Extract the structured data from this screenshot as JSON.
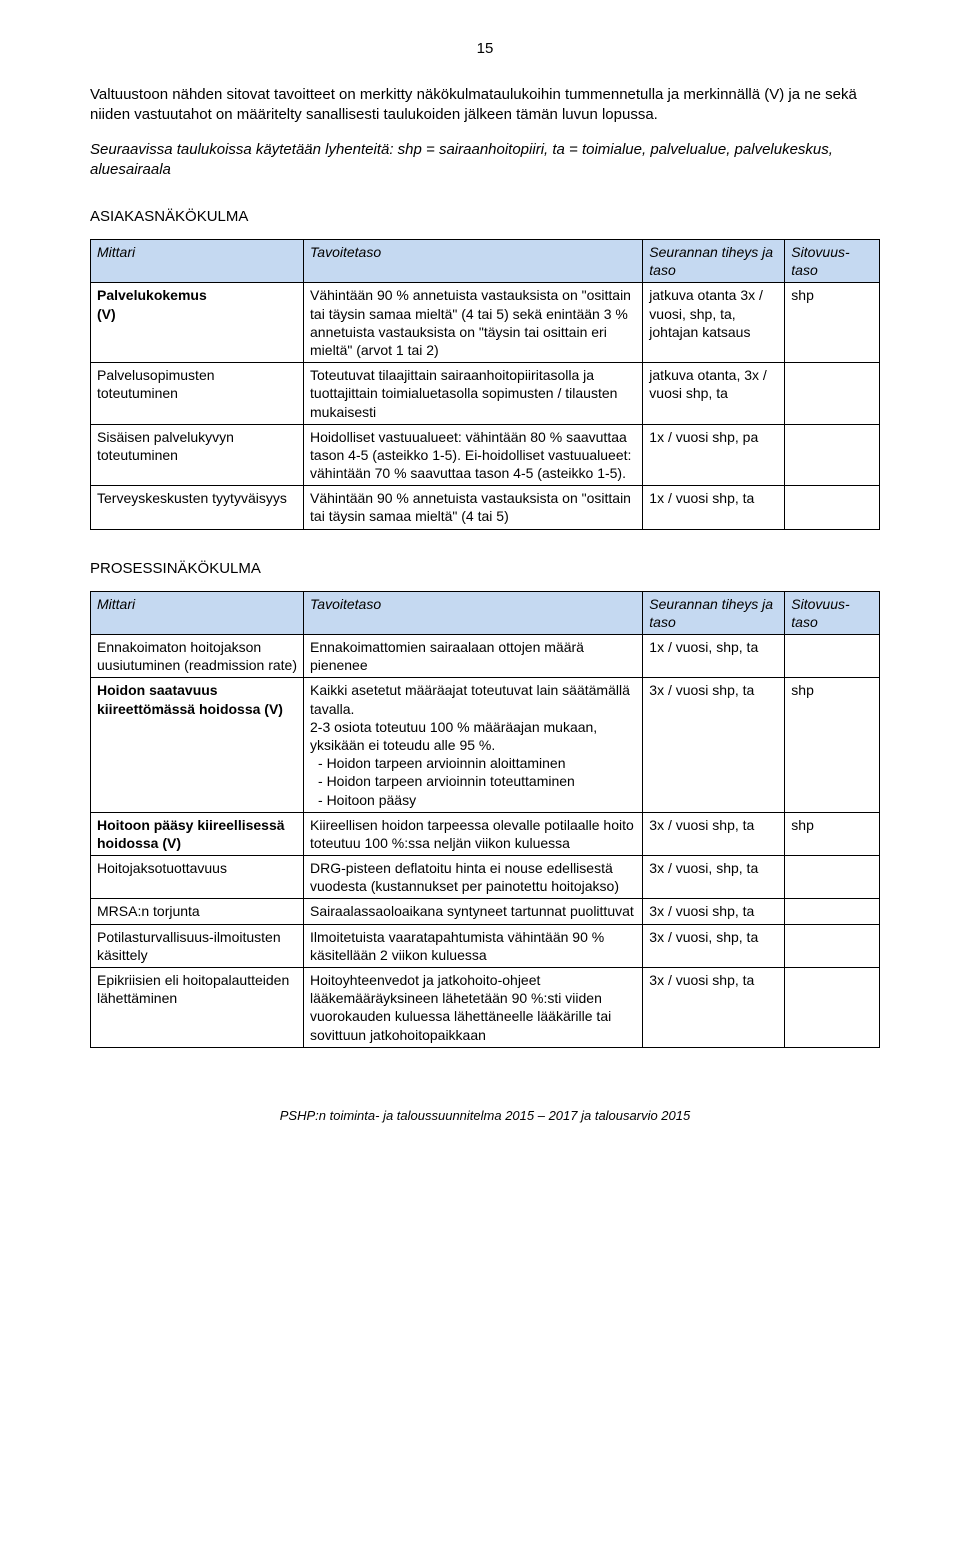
{
  "page_number": "15",
  "intro_paragraph": "Valtuustoon nähden sitovat tavoitteet on merkitty näkökulmataulukoihin tummennetulla ja merkinnällä (V) ja ne sekä niiden vastuutahot on määritelty sanallisesti taulukoiden jälkeen tämän luvun lopussa.",
  "intro_italic": "Seuraavissa taulukoissa käytetään lyhenteitä: shp = sairaanhoitopiiri, ta = toimialue, palvelualue, palvelukeskus, aluesairaala",
  "section1": {
    "heading": "ASIAKASNÄKÖKULMA",
    "headers": {
      "c1": "Mittari",
      "c2": "Tavoitetaso",
      "c3": "Seurannan tiheys ja taso",
      "c4": "Sitovuus-taso"
    },
    "rows": [
      {
        "mittari_html": "<span class=\"bold\">Palvelukokemus<br>(V)</span>",
        "tavoite": "Vähintään 90 % annetuista vastauksista on \"osittain tai täysin samaa mieltä\" (4 tai 5) sekä enintään 3 % annetuista vastauksista on \"täysin tai osittain eri mieltä\" (arvot 1 tai 2)",
        "seur": "jatkuva otanta 3x / vuosi, shp, ta, johtajan katsaus",
        "sito": "shp"
      },
      {
        "mittari_html": "Palvelusopimusten toteutuminen",
        "tavoite": "Toteutuvat tilaajittain sairaanhoitopiiritasolla ja tuottajittain toimialuetasolla sopimusten / tilausten mukaisesti",
        "seur": "jatkuva otanta, 3x / vuosi shp, ta",
        "sito": ""
      },
      {
        "mittari_html": "Sisäisen palvelukyvyn toteutuminen",
        "tavoite": "Hoidolliset vastuualueet: vähintään 80 % saavuttaa tason 4-5 (asteikko 1-5). Ei-hoidolliset vastuualueet: vähintään 70 % saavuttaa tason 4-5 (asteikko 1-5).",
        "seur": "1x / vuosi shp, pa",
        "sito": ""
      },
      {
        "mittari_html": "Terveyskeskusten tyytyväisyys",
        "tavoite": "Vähintään 90 % annetuista vastauksista on \"osittain tai täysin samaa mieltä\" (4 tai 5)",
        "seur": "1x / vuosi shp, ta",
        "sito": ""
      }
    ]
  },
  "section2": {
    "heading": "PROSESSINÄKÖKULMA",
    "headers": {
      "c1": "Mittari",
      "c2": "Tavoitetaso",
      "c3": "Seurannan tiheys ja taso",
      "c4": "Sitovuus-taso"
    },
    "rows": [
      {
        "mittari_html": "Ennakoimaton hoitojakson uusiutuminen (readmission rate)",
        "tavoite_html": "Ennakoimattomien sairaalaan ottojen määrä pienenee",
        "seur": "1x / vuosi, shp, ta",
        "sito": ""
      },
      {
        "mittari_html": "<span class=\"bold\">Hoidon saatavuus kiireettömässä hoidossa (V)</span>",
        "tavoite_html": "Kaikki asetetut määräajat toteutuvat lain säätämällä tavalla.<br>2-3 osiota toteutuu 100 % määräajan mukaan, yksikään ei toteudu alle 95 %.<br><span class=\"bullet-line\">- Hoidon tarpeen arvioinnin aloittaminen</span><br><span class=\"bullet-line\">- Hoidon tarpeen arvioinnin toteuttaminen</span><br><span class=\"bullet-line\">- Hoitoon pääsy</span>",
        "seur": "3x / vuosi shp, ta",
        "sito": "shp"
      },
      {
        "mittari_html": "<span class=\"bold\">Hoitoon pääsy kiireellisessä hoidossa (V)</span>",
        "tavoite_html": "Kiireellisen hoidon tarpeessa olevalle potilaalle hoito toteutuu 100 %:ssa neljän viikon kuluessa",
        "seur": "3x / vuosi shp, ta",
        "sito": "shp"
      },
      {
        "mittari_html": "Hoitojaksotuottavuus",
        "tavoite_html": "DRG-pisteen deflatoitu hinta ei nouse edellisestä vuodesta (kustannukset per painotettu hoitojakso)",
        "seur": "3x / vuosi, shp, ta",
        "sito": ""
      },
      {
        "mittari_html": "MRSA:n torjunta",
        "tavoite_html": "Sairaalassaoloaikana syntyneet tartunnat puolittuvat",
        "seur": "3x / vuosi shp, ta",
        "sito": ""
      },
      {
        "mittari_html": "Potilasturvallisuus-ilmoitusten käsittely",
        "tavoite_html": "Ilmoitetuista vaaratapahtumista vähintään 90 % käsitellään 2 viikon kuluessa",
        "seur": "3x / vuosi, shp, ta",
        "sito": ""
      },
      {
        "mittari_html": "Epikriisien eli hoitopalautteiden lähettäminen",
        "tavoite_html": "Hoitoyhteenvedot ja jatkohoito-ohjeet lääkemääräyksineen lähetetään 90 %:sti viiden vuorokauden kuluessa lähettäneelle lääkärille tai sovittuun jatkohoitopaikkaan",
        "seur": "3x / vuosi shp, ta",
        "sito": ""
      }
    ]
  },
  "footer": "PSHP:n toiminta- ja taloussuunnitelma 2015 – 2017 ja talousarvio 2015"
}
